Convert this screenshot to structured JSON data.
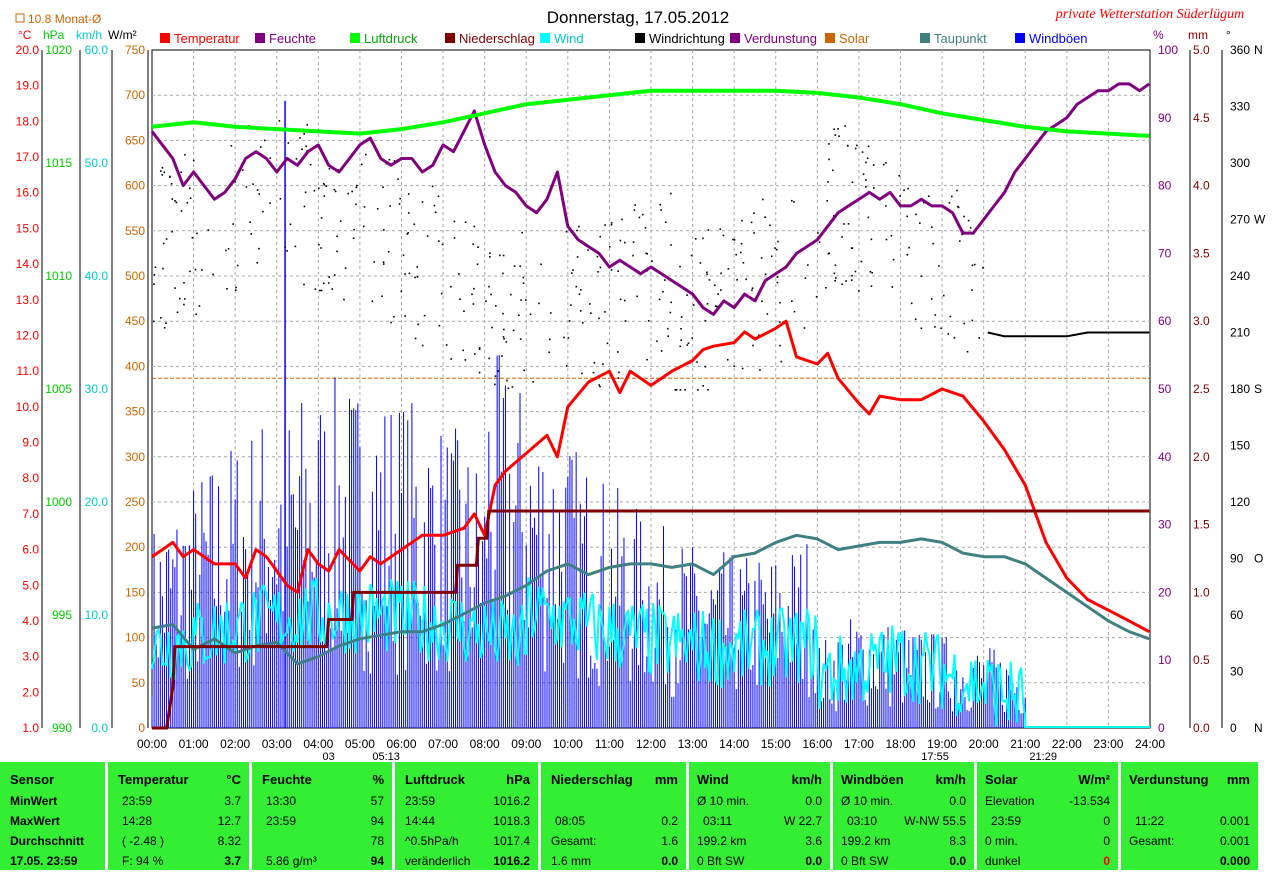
{
  "page": {
    "title": "Donnerstag, 17.05.2012",
    "station": "private Wetterstation Süderlügum",
    "month_avg_label": "10.8 Monat-Ø",
    "bg_color": "#ffffff",
    "table_color": "#33ee33"
  },
  "axes": {
    "temp_unit": "°C",
    "press_unit": "hPa",
    "wind_unit": "km/h",
    "solar_unit": "W/m²",
    "hum_unit": "%",
    "rain_unit": "mm",
    "dir_unit": "°",
    "temp_ticks": [
      "1.0",
      "2.0",
      "3.0",
      "4.0",
      "5.0",
      "6.0",
      "7.0",
      "8.0",
      "9.0",
      "10.0",
      "11.0",
      "12.0",
      "13.0",
      "14.0",
      "15.0",
      "16.0",
      "17.0",
      "18.0",
      "19.0",
      "20.0"
    ],
    "press_ticks": [
      "990",
      "995",
      "1000",
      "1005",
      "1010",
      "1015",
      "1020"
    ],
    "wind_ticks": [
      "0.0",
      "10.0",
      "20.0",
      "30.0",
      "40.0",
      "50.0",
      "60.0"
    ],
    "solar_ticks": [
      "0",
      "50",
      "100",
      "150",
      "200",
      "250",
      "300",
      "350",
      "400",
      "450",
      "500",
      "550",
      "600",
      "650",
      "700",
      "750"
    ],
    "hum_ticks": [
      "0",
      "10",
      "20",
      "30",
      "40",
      "50",
      "60",
      "70",
      "80",
      "90",
      "100"
    ],
    "rain_ticks": [
      "0.0",
      "0.5",
      "1.0",
      "1.5",
      "2.0",
      "2.5",
      "3.0",
      "3.5",
      "4.0",
      "4.5",
      "5.0"
    ],
    "dir_ticks": [
      "0",
      "N",
      "30",
      "60",
      "90",
      "O",
      "120",
      "150",
      "180",
      "S",
      "210",
      "240",
      "270",
      "W",
      "300",
      "330",
      "360",
      "N"
    ],
    "time_ticks": [
      "00:00",
      "01:00",
      "02:00",
      "03:00",
      "04:00",
      "05:00",
      "06:00",
      "07:00",
      "08:00",
      "09:00",
      "10:00",
      "11:00",
      "12:00",
      "13:00",
      "14:00",
      "15:00",
      "16:00",
      "17:00",
      "18:00",
      "19:00",
      "20:00",
      "21:00",
      "22:00",
      "23:00",
      "24:00"
    ],
    "event_labels": [
      "03",
      "05:13",
      "17:55",
      "21:29"
    ]
  },
  "legend": [
    {
      "name": "Temperatur",
      "color": "#ff0000"
    },
    {
      "name": "Feuchte",
      "color": "#800080"
    },
    {
      "name": "Luftdruck",
      "color": "#00ff00"
    },
    {
      "name": "Niederschlag",
      "color": "#800000"
    },
    {
      "name": "Wind",
      "color": "#00ffff"
    },
    {
      "name": "Windrichtung",
      "color": "#000000"
    },
    {
      "name": "Verdunstung",
      "color": "#800080"
    },
    {
      "name": "Solar",
      "color": "#cc6600"
    },
    {
      "name": "Taupunkt",
      "color": "#408080"
    },
    {
      "name": "Windböen",
      "color": "#0000ff"
    }
  ],
  "chart_data": {
    "type": "line",
    "title": "Donnerstag, 17.05.2012",
    "x_unit": "hour",
    "xlim": [
      0,
      24
    ],
    "temp_ylim": [
      1,
      20
    ],
    "hum_ylim": [
      0,
      100
    ],
    "press_ylim": [
      990,
      1020
    ],
    "wind_ylim": [
      0,
      60
    ],
    "rain_ylim": [
      0,
      5
    ],
    "dir_ylim": [
      0,
      360
    ],
    "solar_ylim": [
      0,
      750
    ],
    "series": [
      {
        "name": "Temperatur",
        "color": "#ff0000",
        "axis": "temp",
        "x": [
          0,
          0.25,
          0.5,
          0.75,
          1,
          1.5,
          2,
          2.25,
          2.5,
          2.75,
          3,
          3.25,
          3.5,
          3.75,
          4,
          4.25,
          4.5,
          5,
          5.25,
          5.5,
          6,
          6.5,
          7,
          7.5,
          7.75,
          8,
          8.25,
          8.5,
          9,
          9.5,
          9.75,
          10,
          10.5,
          11,
          11.25,
          11.5,
          12,
          12.5,
          13,
          13.25,
          13.5,
          14,
          14.25,
          14.5,
          15,
          15.25,
          15.5,
          16,
          16.25,
          16.5,
          17,
          17.25,
          17.5,
          18,
          18.5,
          19,
          19.5,
          20,
          20.5,
          21,
          21.5,
          22,
          22.5,
          23,
          23.5,
          23.98
        ],
        "y": [
          5.8,
          6.0,
          6.2,
          5.8,
          6.0,
          5.6,
          5.6,
          5.2,
          6.0,
          5.8,
          5.4,
          5.0,
          4.8,
          6.0,
          5.6,
          5.4,
          6.0,
          5.4,
          5.8,
          5.6,
          6.0,
          6.4,
          6.4,
          6.6,
          7.0,
          6.4,
          7.8,
          8.2,
          8.7,
          9.2,
          8.6,
          10.0,
          10.7,
          11.0,
          10.4,
          11.0,
          10.6,
          11.0,
          11.3,
          11.6,
          11.7,
          11.8,
          12.1,
          11.9,
          12.2,
          12.4,
          11.4,
          11.2,
          11.5,
          10.8,
          10.1,
          9.8,
          10.3,
          10.2,
          10.2,
          10.5,
          10.3,
          9.6,
          8.8,
          7.8,
          6.2,
          5.2,
          4.6,
          4.3,
          4.0,
          3.7
        ]
      },
      {
        "name": "Taupunkt",
        "color": "#408080",
        "axis": "temp",
        "x": [
          0,
          0.5,
          1,
          1.5,
          2,
          2.5,
          3,
          3.5,
          4,
          4.5,
          5,
          5.5,
          6,
          6.5,
          7,
          7.5,
          8,
          8.5,
          9,
          9.5,
          10,
          10.5,
          11,
          11.5,
          12,
          12.5,
          13,
          13.5,
          14,
          14.5,
          15,
          15.5,
          16,
          16.5,
          17,
          17.5,
          18,
          18.5,
          19,
          19.5,
          20,
          20.5,
          21,
          21.5,
          22,
          22.5,
          23,
          23.5,
          23.98
        ],
        "y": [
          3.8,
          3.9,
          3.2,
          3.5,
          3.1,
          3.3,
          3.4,
          2.8,
          3.0,
          3.3,
          3.5,
          3.6,
          3.7,
          3.7,
          3.9,
          4.2,
          4.5,
          4.7,
          5.0,
          5.4,
          5.6,
          5.3,
          5.5,
          5.6,
          5.6,
          5.5,
          5.6,
          5.3,
          5.8,
          5.9,
          6.2,
          6.4,
          6.3,
          6.0,
          6.1,
          6.2,
          6.2,
          6.3,
          6.2,
          5.9,
          5.8,
          5.8,
          5.6,
          5.2,
          4.8,
          4.4,
          4.0,
          3.7,
          3.5
        ]
      },
      {
        "name": "Feuchte",
        "color": "#800080",
        "axis": "hum",
        "x": [
          0,
          0.25,
          0.5,
          0.75,
          1,
          1.25,
          1.5,
          1.75,
          2,
          2.25,
          2.5,
          2.75,
          3,
          3.25,
          3.5,
          3.75,
          4,
          4.25,
          4.5,
          4.75,
          5,
          5.25,
          5.5,
          5.75,
          6,
          6.25,
          6.5,
          6.75,
          7,
          7.25,
          7.5,
          7.75,
          8,
          8.25,
          8.5,
          8.75,
          9,
          9.25,
          9.5,
          9.75,
          10,
          10.25,
          10.5,
          10.75,
          11,
          11.25,
          11.5,
          11.75,
          12,
          12.25,
          12.5,
          12.75,
          13,
          13.25,
          13.5,
          13.75,
          14,
          14.25,
          14.5,
          14.75,
          15,
          15.25,
          15.5,
          15.75,
          16,
          16.25,
          16.5,
          16.75,
          17,
          17.25,
          17.5,
          17.75,
          18,
          18.25,
          18.5,
          18.75,
          19,
          19.25,
          19.5,
          19.75,
          20,
          20.25,
          20.5,
          20.75,
          21,
          21.25,
          21.5,
          21.75,
          22,
          22.25,
          22.5,
          22.75,
          23,
          23.25,
          23.5,
          23.75,
          23.98
        ],
        "y": [
          88,
          86,
          84,
          80,
          82,
          80,
          78,
          79,
          81,
          84,
          85,
          84,
          82,
          84,
          83,
          85,
          86,
          83,
          82,
          84,
          86,
          87,
          84,
          83,
          84,
          84,
          82,
          83,
          86,
          85,
          88,
          91,
          86,
          82,
          80,
          79,
          77,
          76,
          78,
          82,
          74,
          72,
          71,
          70,
          68,
          69,
          68,
          67,
          68,
          67,
          66,
          65,
          64,
          62,
          61,
          63,
          62,
          64,
          63,
          66,
          67,
          68,
          70,
          71,
          72,
          74,
          76,
          77,
          78,
          79,
          78,
          79,
          77,
          77,
          78,
          77,
          77,
          76,
          73,
          73,
          75,
          77,
          79,
          82,
          84,
          86,
          88,
          89,
          90,
          92,
          93,
          94,
          94,
          95,
          95,
          94,
          95
        ]
      },
      {
        "name": "Luftdruck",
        "color": "#00ff00",
        "axis": "press",
        "x": [
          0,
          1,
          2,
          3,
          4,
          5,
          6,
          7,
          8,
          9,
          10,
          11,
          12,
          13,
          14,
          15,
          16,
          17,
          18,
          19,
          20,
          21,
          22,
          23,
          23.98
        ],
        "y": [
          1016.6,
          1016.8,
          1016.6,
          1016.5,
          1016.4,
          1016.3,
          1016.5,
          1016.8,
          1017.2,
          1017.6,
          1017.8,
          1018.0,
          1018.2,
          1018.2,
          1018.2,
          1018.2,
          1018.1,
          1017.9,
          1017.6,
          1017.2,
          1016.9,
          1016.6,
          1016.4,
          1016.3,
          1016.2
        ]
      },
      {
        "name": "Niederschlag",
        "color": "#800000",
        "axis": "rain",
        "step": true,
        "x": [
          0,
          0.35,
          0.5,
          0.55,
          4.2,
          4.25,
          4.8,
          4.85,
          7.3,
          7.35,
          7.8,
          7.85,
          8.05,
          8.1,
          23.98
        ],
        "y": [
          0,
          0,
          0.3,
          0.6,
          0.6,
          0.8,
          0.8,
          1.0,
          1.0,
          1.2,
          1.2,
          1.4,
          1.4,
          1.6,
          1.6
        ]
      },
      {
        "name": "Windrichtung",
        "color": "#000000",
        "axis": "dir",
        "x": [
          20.1,
          20.5,
          20.8,
          21.8,
          22.0,
          22.5,
          23.0,
          23.98
        ],
        "y": [
          210,
          208,
          208,
          208,
          208,
          210,
          210,
          210
        ]
      }
    ],
    "wind_color": "#00ffff",
    "gust_color": "#0000ff",
    "month_avg_temp": 10.8
  },
  "table": {
    "sensor": {
      "header": "Sensor",
      "rows": [
        "MinWert",
        "MaxWert",
        "Durchschnitt",
        "17.05. 23:59"
      ]
    },
    "temp": {
      "header": "Temperatur",
      "unit": "°C",
      "rows": [
        [
          "23:59",
          "3.7"
        ],
        [
          "14:28",
          "12.7"
        ],
        [
          "( -2.48 )",
          "8.32"
        ],
        [
          "F: 94 %",
          "3.7"
        ]
      ]
    },
    "hum": {
      "header": "Feuchte",
      "unit": "%",
      "rows": [
        [
          "13:30",
          "57"
        ],
        [
          "23:59",
          "94"
        ],
        [
          "",
          "78"
        ],
        [
          "5.86 g/m³",
          "94"
        ]
      ]
    },
    "press": {
      "header": "Luftdruck",
      "unit": "hPa",
      "rows": [
        [
          "23:59",
          "1016.2"
        ],
        [
          "14:44",
          "1018.3"
        ],
        [
          "^0.5hPa/h",
          "1017.4"
        ],
        [
          "veränderlich",
          "1016.2"
        ]
      ]
    },
    "rain": {
      "header": "Niederschlag",
      "unit": "mm",
      "rows": [
        [
          "",
          ""
        ],
        [
          "08:05",
          "0.2"
        ],
        [
          "Gesamt:",
          "1.6"
        ],
        [
          "1.6 mm",
          "0.0"
        ]
      ]
    },
    "wind": {
      "header": "Wind",
      "unit": "km/h",
      "rows": [
        [
          "Ø 10 min.",
          "0.0"
        ],
        [
          "03:11",
          "W 22.7"
        ],
        [
          "199.2 km",
          "3.6"
        ],
        [
          "0 Bft SW",
          "0.0"
        ]
      ]
    },
    "gust": {
      "header": "Windböen",
      "unit": "km/h",
      "rows": [
        [
          "Ø 10 min.",
          "0.0"
        ],
        [
          "03:10",
          "W-NW 55.5"
        ],
        [
          "199.2 km",
          "8.3"
        ],
        [
          "0 Bft SW",
          "0.0"
        ]
      ]
    },
    "solar": {
      "header": "Solar",
      "unit": "W/m²",
      "rows": [
        [
          "Elevation",
          "-13.534"
        ],
        [
          "23:59",
          "0"
        ],
        [
          "0 min.",
          "0"
        ],
        [
          "dunkel",
          "0"
        ]
      ]
    },
    "evap": {
      "header": "Verdunstung",
      "unit": "mm",
      "rows": [
        [
          "",
          ""
        ],
        [
          "11:22",
          "0.001"
        ],
        [
          "Gesamt:",
          "0.001"
        ],
        [
          "",
          "0.000"
        ]
      ]
    }
  }
}
